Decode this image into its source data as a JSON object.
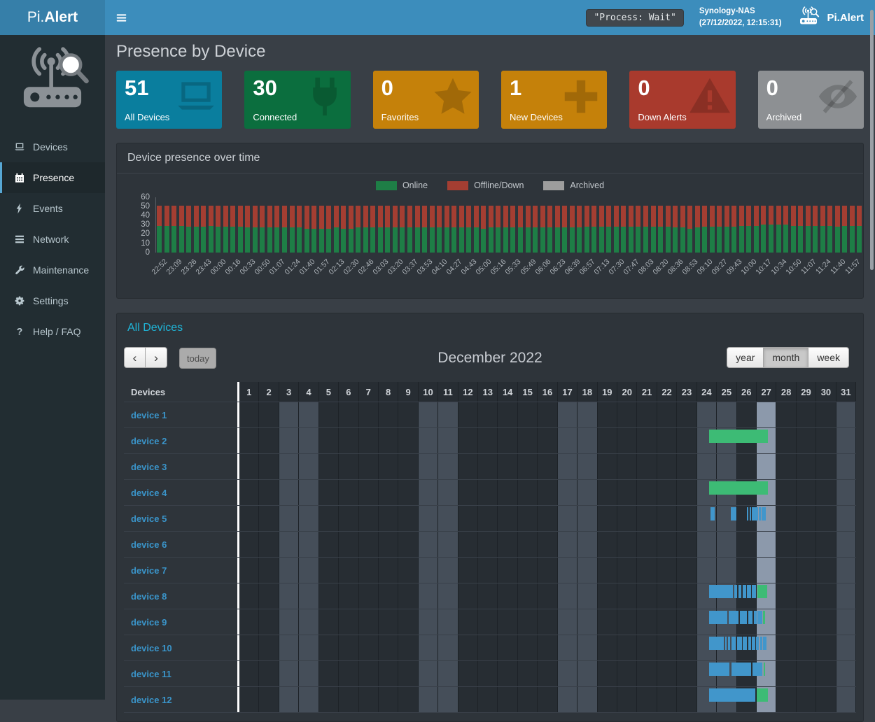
{
  "navbar": {
    "brand_light": "Pi.",
    "brand_bold": "Alert",
    "process_status": "\"Process: Wait\"",
    "host": "Synology-NAS",
    "timestamp": "(27/12/2022, 12:15:31)",
    "right_brand": "Pi.Alert"
  },
  "sidebar": {
    "items": [
      {
        "label": "Devices",
        "icon": "laptop-icon",
        "active": false
      },
      {
        "label": "Presence",
        "icon": "calendar-icon",
        "active": true
      },
      {
        "label": "Events",
        "icon": "bolt-icon",
        "active": false
      },
      {
        "label": "Network",
        "icon": "network-icon",
        "active": false
      },
      {
        "label": "Maintenance",
        "icon": "wrench-icon",
        "active": false
      },
      {
        "label": "Settings",
        "icon": "gear-icon",
        "active": false
      },
      {
        "label": "Help / FAQ",
        "icon": "question-icon",
        "active": false
      }
    ]
  },
  "page": {
    "title": "Presence by Device"
  },
  "summary_cards": [
    {
      "value": "51",
      "label": "All Devices",
      "color": "#0a7e9e",
      "icon": "laptop-icon"
    },
    {
      "value": "30",
      "label": "Connected",
      "color": "#0b6e3e",
      "icon": "plug-icon"
    },
    {
      "value": "0",
      "label": "Favorites",
      "color": "#c5810a",
      "icon": "star-icon"
    },
    {
      "value": "1",
      "label": "New Devices",
      "color": "#c5810a",
      "icon": "plus-icon"
    },
    {
      "value": "0",
      "label": "Down Alerts",
      "color": "#a93a2d",
      "icon": "warning-icon"
    },
    {
      "value": "0",
      "label": "Archived",
      "color": "#8d9093",
      "icon": "eye-slash-icon"
    }
  ],
  "chart_panel": {
    "title": "Device presence over time"
  },
  "chart_data": {
    "type": "bar",
    "stacked": true,
    "title": "Device presence over time",
    "legend": [
      {
        "label": "Online",
        "color": "#1e7e46"
      },
      {
        "label": "Offline/Down",
        "color": "#a43e32"
      },
      {
        "label": "Archived",
        "color": "#9d9d9d"
      }
    ],
    "ylim": [
      0,
      60
    ],
    "yticks": [
      60,
      50,
      40,
      30,
      20,
      10,
      0
    ],
    "label_every_n_bars": 2,
    "categories": [
      "22:52",
      "23:09",
      "23:26",
      "23:43",
      "00:00",
      "00:16",
      "00:33",
      "00:50",
      "01:07",
      "01:24",
      "01:40",
      "01:57",
      "02:13",
      "02:30",
      "02:46",
      "03:03",
      "03:20",
      "03:37",
      "03:53",
      "04:10",
      "04:27",
      "04:43",
      "05:00",
      "05:16",
      "05:33",
      "05:49",
      "06:06",
      "06:23",
      "06:39",
      "06:57",
      "07:13",
      "07:30",
      "07:47",
      "08:03",
      "08:20",
      "08:36",
      "08:53",
      "09:10",
      "09:27",
      "09:43",
      "10:00",
      "10:17",
      "10:34",
      "10:50",
      "11:07",
      "11:24",
      "11:40",
      "11:57"
    ],
    "series": [
      {
        "name": "Online",
        "color": "#1e7e46",
        "values": [
          29,
          29,
          29,
          29,
          28,
          28,
          28,
          29,
          28,
          28,
          28,
          28,
          27,
          27,
          27,
          27,
          27,
          27,
          27,
          27,
          26,
          26,
          26,
          26,
          27,
          26,
          26,
          27,
          27,
          27,
          27,
          27,
          27,
          27,
          27,
          27,
          27,
          27,
          27,
          27,
          27,
          27,
          27,
          27,
          26,
          27,
          27,
          27,
          27,
          27,
          27,
          27,
          27,
          27,
          27,
          27,
          27,
          27,
          28,
          28,
          28,
          28,
          28,
          28,
          28,
          28,
          28,
          28,
          28,
          28,
          27,
          27,
          26,
          27,
          28,
          28,
          28,
          28,
          28,
          29,
          29,
          29,
          30,
          30,
          30,
          30,
          29,
          29,
          29,
          29,
          29,
          29,
          28,
          29,
          29,
          29
        ]
      },
      {
        "name": "Offline/Down",
        "color": "#a43e32",
        "values": [
          22,
          22,
          22,
          22,
          23,
          23,
          23,
          22,
          23,
          23,
          23,
          23,
          24,
          24,
          24,
          24,
          24,
          24,
          24,
          24,
          25,
          25,
          25,
          25,
          24,
          25,
          25,
          24,
          24,
          24,
          24,
          24,
          24,
          24,
          24,
          24,
          24,
          24,
          24,
          24,
          24,
          24,
          24,
          24,
          25,
          24,
          24,
          24,
          24,
          24,
          24,
          24,
          24,
          24,
          24,
          24,
          24,
          24,
          23,
          23,
          23,
          23,
          23,
          23,
          23,
          23,
          23,
          23,
          23,
          23,
          24,
          24,
          25,
          24,
          23,
          23,
          23,
          23,
          23,
          22,
          22,
          22,
          21,
          21,
          21,
          21,
          22,
          22,
          22,
          22,
          22,
          22,
          23,
          22,
          22,
          22
        ]
      },
      {
        "name": "Archived",
        "color": "#9d9d9d",
        "values": [
          0,
          0,
          0,
          0,
          0,
          0,
          0,
          0,
          0,
          0,
          0,
          0,
          0,
          0,
          0,
          0,
          0,
          0,
          0,
          0,
          0,
          0,
          0,
          0,
          0,
          0,
          0,
          0,
          0,
          0,
          0,
          0,
          0,
          0,
          0,
          0,
          0,
          0,
          0,
          0,
          0,
          0,
          0,
          0,
          0,
          0,
          0,
          0,
          0,
          0,
          0,
          0,
          0,
          0,
          0,
          0,
          0,
          0,
          0,
          0,
          0,
          0,
          0,
          0,
          0,
          0,
          0,
          0,
          0,
          0,
          0,
          0,
          0,
          0,
          0,
          0,
          0,
          0,
          0,
          0,
          0,
          0,
          0,
          0,
          0,
          0,
          0,
          0,
          0,
          0,
          0,
          0,
          0,
          0,
          0,
          0
        ]
      }
    ]
  },
  "calendar": {
    "title": "All Devices",
    "toolbar": {
      "prev": "‹",
      "next": "›",
      "today_label": "today",
      "month_title": "December 2022",
      "views": [
        "year",
        "month",
        "week"
      ],
      "active_view": "month"
    },
    "table": {
      "device_header": "Devices",
      "days": [
        1,
        2,
        3,
        4,
        5,
        6,
        7,
        8,
        9,
        10,
        11,
        12,
        13,
        14,
        15,
        16,
        17,
        18,
        19,
        20,
        21,
        22,
        23,
        24,
        25,
        26,
        27,
        28,
        29,
        30,
        31
      ],
      "weekend_days": [
        3,
        4,
        10,
        11,
        17,
        18,
        24,
        25,
        31
      ],
      "today_day": 27
    },
    "event_colors": {
      "session": "#4196cb",
      "online": "#3dbb75"
    },
    "devices": [
      {
        "name": "device 1",
        "bars": []
      },
      {
        "name": "device 2",
        "bars": [
          {
            "type": "online",
            "start": 24.53,
            "end": 27.48
          }
        ]
      },
      {
        "name": "device 3",
        "bars": []
      },
      {
        "name": "device 4",
        "bars": [
          {
            "type": "online",
            "start": 24.53,
            "end": 27.48
          }
        ]
      },
      {
        "name": "device 5",
        "bars": [
          {
            "type": "session",
            "start": 24.6,
            "end": 24.8
          },
          {
            "type": "session",
            "start": 25.62,
            "end": 25.9
          },
          {
            "type": "session",
            "start": 26.42,
            "end": 26.5
          },
          {
            "type": "session",
            "start": 26.55,
            "end": 26.62
          },
          {
            "type": "session",
            "start": 26.68,
            "end": 26.98
          },
          {
            "type": "session",
            "start": 27.02,
            "end": 27.12
          },
          {
            "type": "session",
            "start": 27.15,
            "end": 27.38
          }
        ]
      },
      {
        "name": "device 6",
        "bars": []
      },
      {
        "name": "device 7",
        "bars": []
      },
      {
        "name": "device 8",
        "bars": [
          {
            "type": "session",
            "start": 24.53,
            "end": 25.73
          },
          {
            "type": "session",
            "start": 25.79,
            "end": 25.95
          },
          {
            "type": "session",
            "start": 26.0,
            "end": 26.16
          },
          {
            "type": "session",
            "start": 26.2,
            "end": 26.38
          },
          {
            "type": "session",
            "start": 26.42,
            "end": 26.62
          },
          {
            "type": "session",
            "start": 26.66,
            "end": 26.88
          },
          {
            "type": "online",
            "start": 26.95,
            "end": 27.45
          }
        ]
      },
      {
        "name": "device 9",
        "bars": [
          {
            "type": "session",
            "start": 24.53,
            "end": 25.45
          },
          {
            "type": "session",
            "start": 25.52,
            "end": 26.02
          },
          {
            "type": "session",
            "start": 26.08,
            "end": 26.44
          },
          {
            "type": "session",
            "start": 26.48,
            "end": 26.72
          },
          {
            "type": "session",
            "start": 26.76,
            "end": 26.9
          },
          {
            "type": "session",
            "start": 26.94,
            "end": 27.18
          },
          {
            "type": "online",
            "start": 27.22,
            "end": 27.32
          }
        ]
      },
      {
        "name": "device 10",
        "bars": [
          {
            "type": "session",
            "start": 24.53,
            "end": 25.28
          },
          {
            "type": "session",
            "start": 25.33,
            "end": 25.42
          },
          {
            "type": "session",
            "start": 25.47,
            "end": 25.6
          },
          {
            "type": "session",
            "start": 25.66,
            "end": 25.88
          },
          {
            "type": "session",
            "start": 25.93,
            "end": 26.18
          },
          {
            "type": "session",
            "start": 26.23,
            "end": 26.43
          },
          {
            "type": "session",
            "start": 26.48,
            "end": 26.63
          },
          {
            "type": "session",
            "start": 26.68,
            "end": 26.83
          },
          {
            "type": "session",
            "start": 26.88,
            "end": 27.03
          },
          {
            "type": "session",
            "start": 27.08,
            "end": 27.18
          },
          {
            "type": "session",
            "start": 27.23,
            "end": 27.4
          }
        ]
      },
      {
        "name": "device 11",
        "bars": [
          {
            "type": "session",
            "start": 24.53,
            "end": 25.56
          },
          {
            "type": "session",
            "start": 25.66,
            "end": 26.65
          },
          {
            "type": "session",
            "start": 26.72,
            "end": 27.18
          },
          {
            "type": "online",
            "start": 27.25,
            "end": 27.34
          }
        ]
      },
      {
        "name": "device 12",
        "bars": [
          {
            "type": "session",
            "start": 24.53,
            "end": 26.86
          },
          {
            "type": "online",
            "start": 26.9,
            "end": 27.48
          }
        ]
      }
    ]
  }
}
